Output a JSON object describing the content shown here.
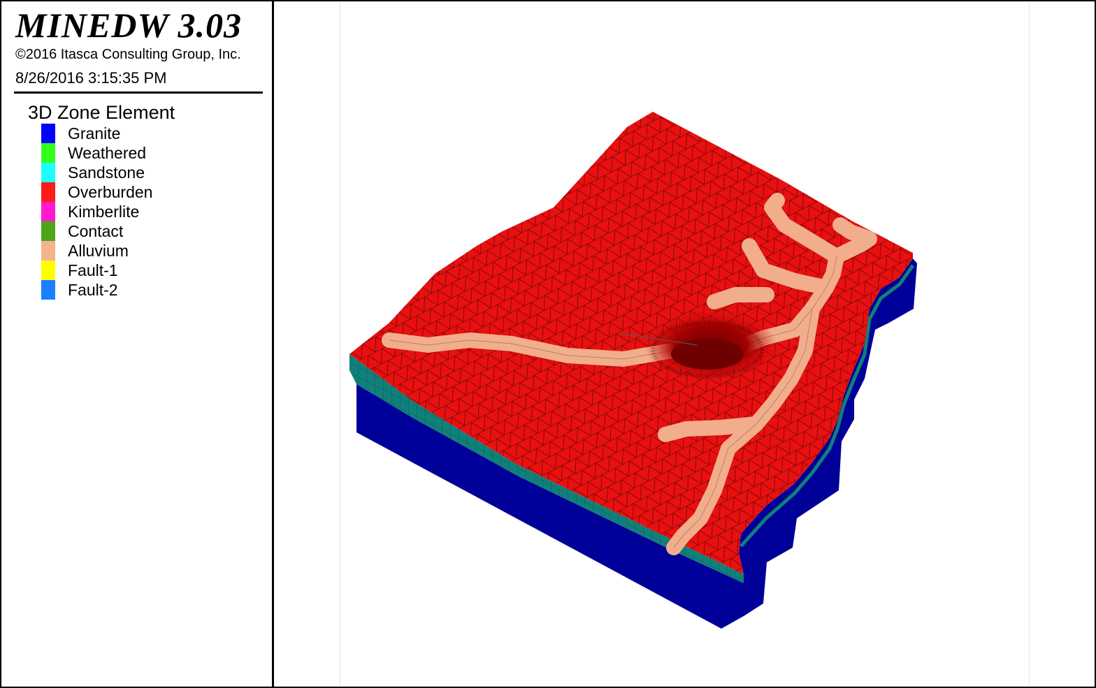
{
  "app": {
    "title": "MINEDW 3.03",
    "copyright": "©2016 Itasca Consulting Group, Inc.",
    "timestamp": "8/26/2016 3:15:35 PM"
  },
  "legend": {
    "title": "3D Zone Element",
    "items": [
      {
        "label": "Granite",
        "color": "#0000ff"
      },
      {
        "label": "Weathered",
        "color": "#33ff1a"
      },
      {
        "label": "Sandstone",
        "color": "#1affff"
      },
      {
        "label": "Overburden",
        "color": "#ff1a1a"
      },
      {
        "label": "Kimberlite",
        "color": "#ff1acc"
      },
      {
        "label": "Contact",
        "color": "#4da61a"
      },
      {
        "label": "Alluvium",
        "color": "#f5b38f"
      },
      {
        "label": "Fault-1",
        "color": "#ffff00"
      },
      {
        "label": "Fault-2",
        "color": "#1a80ff"
      }
    ]
  },
  "model_colors": {
    "top_surface": "#e81010",
    "granite_side": "#00009c",
    "sandstone_side": "#10807a",
    "alluvium": "#f2ae8c",
    "mesh_line": "#000000",
    "pit": "#6e0000"
  }
}
